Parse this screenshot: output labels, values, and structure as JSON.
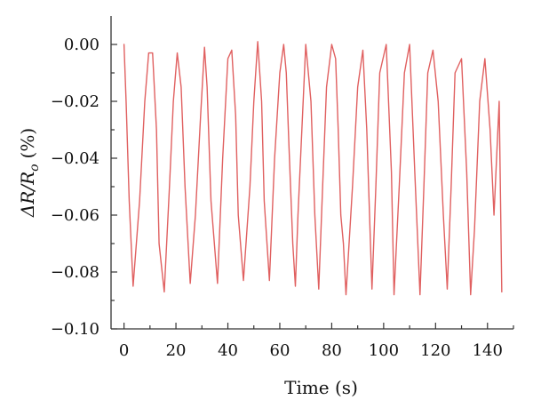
{
  "chart_data": {
    "type": "line",
    "title": "",
    "xlabel": "Time (s)",
    "ylabel": "ΔR/R",
    "ylabel_subscript": "o",
    "ylabel_unit": "(%)",
    "xlim": [
      -5,
      150
    ],
    "ylim": [
      -0.1,
      0.01
    ],
    "x_ticks": [
      0,
      20,
      40,
      60,
      80,
      100,
      120,
      140
    ],
    "x_tick_labels": [
      "0",
      "20",
      "40",
      "60",
      "80",
      "100",
      "120",
      "140"
    ],
    "y_ticks": [
      0.0,
      -0.02,
      -0.04,
      -0.06,
      -0.08,
      -0.1
    ],
    "y_tick_labels": [
      "0.00",
      "−0.02",
      "−0.04",
      "−0.06",
      "−0.08",
      "−0.10"
    ],
    "grid": false,
    "legend": "none",
    "color": "#e06060",
    "series": [
      {
        "x": [
          0,
          0.8,
          2,
          3.5,
          6,
          8,
          9.5,
          11,
          12.5,
          13.5,
          15.5,
          17.5,
          19,
          20.5,
          22,
          23.5,
          25.5,
          27.5,
          29.5,
          31,
          32,
          33.5,
          36,
          38,
          40,
          41.5,
          43,
          44,
          46,
          48.5,
          50,
          51.5,
          53,
          54,
          56,
          58,
          60,
          61.5,
          62.5,
          63.5,
          65,
          66,
          67,
          68.5,
          70,
          72,
          73.5,
          75,
          76.5,
          78,
          80,
          81.5,
          82.5,
          83.5,
          84.5,
          85.5,
          88,
          90,
          92,
          93.5,
          95.5,
          97,
          98.5,
          101,
          103,
          104,
          106,
          108,
          110,
          112,
          114,
          115.5,
          117,
          119,
          121,
          123,
          124.5,
          126,
          127.5,
          130,
          132,
          133.5,
          135,
          137,
          139,
          141,
          142.5,
          143.5,
          144.5,
          145.5
        ],
        "y": [
          0.0,
          -0.02,
          -0.055,
          -0.085,
          -0.055,
          -0.02,
          -0.003,
          -0.003,
          -0.03,
          -0.07,
          -0.087,
          -0.05,
          -0.02,
          -0.003,
          -0.015,
          -0.05,
          -0.084,
          -0.06,
          -0.025,
          -0.001,
          -0.015,
          -0.055,
          -0.084,
          -0.04,
          -0.005,
          -0.002,
          -0.025,
          -0.06,
          -0.083,
          -0.05,
          -0.02,
          0.001,
          -0.02,
          -0.055,
          -0.083,
          -0.04,
          -0.01,
          0.0,
          -0.01,
          -0.035,
          -0.07,
          -0.085,
          -0.06,
          -0.03,
          0.0,
          -0.02,
          -0.06,
          -0.086,
          -0.05,
          -0.015,
          0.0,
          -0.005,
          -0.03,
          -0.06,
          -0.07,
          -0.088,
          -0.05,
          -0.015,
          -0.002,
          -0.03,
          -0.086,
          -0.05,
          -0.01,
          0.0,
          -0.045,
          -0.088,
          -0.05,
          -0.01,
          0.0,
          -0.045,
          -0.088,
          -0.05,
          -0.01,
          -0.002,
          -0.02,
          -0.06,
          -0.086,
          -0.05,
          -0.01,
          -0.005,
          -0.045,
          -0.088,
          -0.065,
          -0.02,
          -0.005,
          -0.03,
          -0.06,
          -0.04,
          -0.02,
          -0.087
        ]
      }
    ]
  }
}
